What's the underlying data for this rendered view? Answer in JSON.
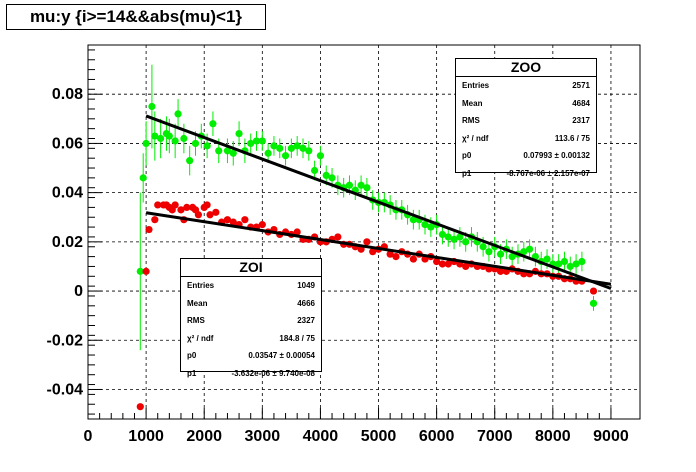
{
  "title": "mu:y {i>=14&&abs(mu)<1}",
  "chart_data": {
    "type": "scatter",
    "title": "mu:y {i>=14&&abs(mu)<1}",
    "xlabel": "",
    "ylabel": "",
    "xlim": [
      0,
      9500
    ],
    "ylim": [
      -0.052,
      0.1
    ],
    "grid": true,
    "xticks": [
      0,
      1000,
      2000,
      3000,
      4000,
      5000,
      6000,
      7000,
      8000,
      9000
    ],
    "yticks": [
      -0.04,
      -0.02,
      0,
      0.02,
      0.04,
      0.06,
      0.08
    ],
    "xtick_labels": [
      "0",
      "1000",
      "2000",
      "3000",
      "4000",
      "5000",
      "6000",
      "7000",
      "8000",
      "9000"
    ],
    "ytick_labels": [
      "-0.04",
      "-0.02",
      "0",
      "0.02",
      "0.04",
      "0.06",
      "0.08"
    ],
    "series": [
      {
        "name": "ZOO",
        "color": "#00ee00",
        "fit": {
          "p0": 0.07993,
          "p1": -8.767e-06,
          "x_range": [
            1000,
            9000
          ]
        },
        "x": [
          900,
          950,
          1000,
          1100,
          1150,
          1250,
          1350,
          1400,
          1500,
          1550,
          1650,
          1750,
          1850,
          1950,
          2050,
          2150,
          2250,
          2400,
          2500,
          2600,
          2700,
          2800,
          2900,
          3000,
          3100,
          3200,
          3300,
          3400,
          3500,
          3600,
          3700,
          3800,
          3900,
          4000,
          4100,
          4200,
          4300,
          4400,
          4500,
          4600,
          4700,
          4800,
          4900,
          5000,
          5100,
          5200,
          5300,
          5400,
          5500,
          5600,
          5700,
          5800,
          5900,
          6000,
          6100,
          6200,
          6300,
          6400,
          6500,
          6600,
          6700,
          6800,
          6900,
          7000,
          7100,
          7200,
          7300,
          7400,
          7500,
          7600,
          7700,
          7800,
          7900,
          8000,
          8100,
          8200,
          8300,
          8400,
          8500,
          8700
        ],
        "y": [
          0.008,
          0.046,
          0.06,
          0.075,
          0.063,
          0.062,
          0.064,
          0.063,
          0.061,
          0.072,
          0.062,
          0.053,
          0.06,
          0.063,
          0.059,
          0.068,
          0.057,
          0.057,
          0.056,
          0.064,
          0.057,
          0.06,
          0.061,
          0.061,
          0.056,
          0.059,
          0.058,
          0.055,
          0.058,
          0.059,
          0.058,
          0.057,
          0.049,
          0.055,
          0.047,
          0.046,
          0.043,
          0.042,
          0.043,
          0.041,
          0.043,
          0.042,
          0.037,
          0.036,
          0.036,
          0.035,
          0.033,
          0.033,
          0.031,
          0.029,
          0.029,
          0.027,
          0.026,
          0.027,
          0.023,
          0.022,
          0.021,
          0.022,
          0.02,
          0.022,
          0.02,
          0.018,
          0.016,
          0.018,
          0.015,
          0.017,
          0.014,
          0.015,
          0.016,
          0.017,
          0.014,
          0.012,
          0.013,
          0.011,
          0.011,
          0.012,
          0.01,
          0.011,
          0.012,
          -0.005
        ],
        "err": [
          0.032,
          0.01,
          0.009,
          0.017,
          0.01,
          0.008,
          0.007,
          0.007,
          0.007,
          0.006,
          0.006,
          0.006,
          0.005,
          0.005,
          0.005,
          0.005,
          0.005,
          0.005,
          0.005,
          0.005,
          0.005,
          0.004,
          0.004,
          0.004,
          0.004,
          0.004,
          0.004,
          0.004,
          0.004,
          0.004,
          0.004,
          0.004,
          0.004,
          0.004,
          0.004,
          0.004,
          0.004,
          0.004,
          0.004,
          0.004,
          0.004,
          0.004,
          0.004,
          0.004,
          0.004,
          0.004,
          0.004,
          0.004,
          0.004,
          0.004,
          0.004,
          0.004,
          0.004,
          0.004,
          0.004,
          0.004,
          0.004,
          0.004,
          0.004,
          0.004,
          0.004,
          0.004,
          0.004,
          0.004,
          0.004,
          0.004,
          0.004,
          0.004,
          0.004,
          0.004,
          0.004,
          0.004,
          0.004,
          0.004,
          0.004,
          0.004,
          0.004,
          0.004,
          0.004,
          0.003
        ]
      },
      {
        "name": "ZOI",
        "color": "#ee0000",
        "fit": {
          "p0": 0.03547,
          "p1": -3.632e-06,
          "x_range": [
            1000,
            9000
          ]
        },
        "x": [
          900,
          1000,
          1050,
          1150,
          1200,
          1300,
          1350,
          1400,
          1450,
          1500,
          1600,
          1650,
          1700,
          1800,
          1850,
          1900,
          2000,
          2050,
          2100,
          2200,
          2300,
          2400,
          2500,
          2600,
          2700,
          2800,
          2900,
          3000,
          3100,
          3200,
          3300,
          3400,
          3500,
          3600,
          3700,
          3800,
          3900,
          4000,
          4100,
          4200,
          4300,
          4400,
          4500,
          4600,
          4700,
          4800,
          4900,
          5000,
          5100,
          5200,
          5300,
          5400,
          5500,
          5600,
          5700,
          5800,
          5900,
          6000,
          6100,
          6200,
          6300,
          6400,
          6500,
          6600,
          6700,
          6800,
          6900,
          7000,
          7100,
          7200,
          7300,
          7400,
          7500,
          7600,
          7700,
          7800,
          7900,
          8000,
          8100,
          8200,
          8300,
          8400,
          8500,
          8700
        ],
        "y": [
          -0.047,
          0.008,
          0.025,
          0.029,
          0.035,
          0.035,
          0.035,
          0.034,
          0.033,
          0.035,
          0.033,
          0.029,
          0.034,
          0.034,
          0.033,
          0.031,
          0.034,
          0.035,
          0.031,
          0.032,
          0.028,
          0.029,
          0.028,
          0.027,
          0.029,
          0.026,
          0.026,
          0.027,
          0.024,
          0.025,
          0.023,
          0.024,
          0.023,
          0.024,
          0.021,
          0.021,
          0.022,
          0.02,
          0.02,
          0.021,
          0.022,
          0.019,
          0.019,
          0.018,
          0.017,
          0.02,
          0.016,
          0.017,
          0.018,
          0.015,
          0.014,
          0.016,
          0.015,
          0.013,
          0.015,
          0.013,
          0.014,
          0.012,
          0.011,
          0.011,
          0.012,
          0.011,
          0.01,
          0.011,
          0.01,
          0.01,
          0.009,
          0.009,
          0.008,
          0.008,
          0.009,
          0.008,
          0.007,
          0.007,
          0.008,
          0.007,
          0.007,
          0.006,
          0.006,
          0.005,
          0.005,
          0.004,
          0.004,
          0.0
        ]
      }
    ]
  },
  "stats": [
    {
      "name": "ZOO",
      "rows": [
        {
          "label": "Entries",
          "value": "2571"
        },
        {
          "label": "Mean",
          "value": "4684"
        },
        {
          "label": "RMS",
          "value": "2317"
        },
        {
          "label": "χ² / ndf",
          "value": "113.6 / 75"
        },
        {
          "label": "p0",
          "value": "0.07993 ± 0.00132"
        },
        {
          "label": "p1",
          "value": "-8.767e-06 ± 2.157e-07"
        }
      ]
    },
    {
      "name": "ZOI",
      "rows": [
        {
          "label": "Entries",
          "value": "1049"
        },
        {
          "label": "Mean",
          "value": "4666"
        },
        {
          "label": "RMS",
          "value": "2327"
        },
        {
          "label": "χ² / ndf",
          "value": "184.8 / 75"
        },
        {
          "label": "p0",
          "value": "0.03547 ± 0.00054"
        },
        {
          "label": "p1",
          "value": "-3.632e-06 ± 9.740e-08"
        }
      ]
    }
  ]
}
